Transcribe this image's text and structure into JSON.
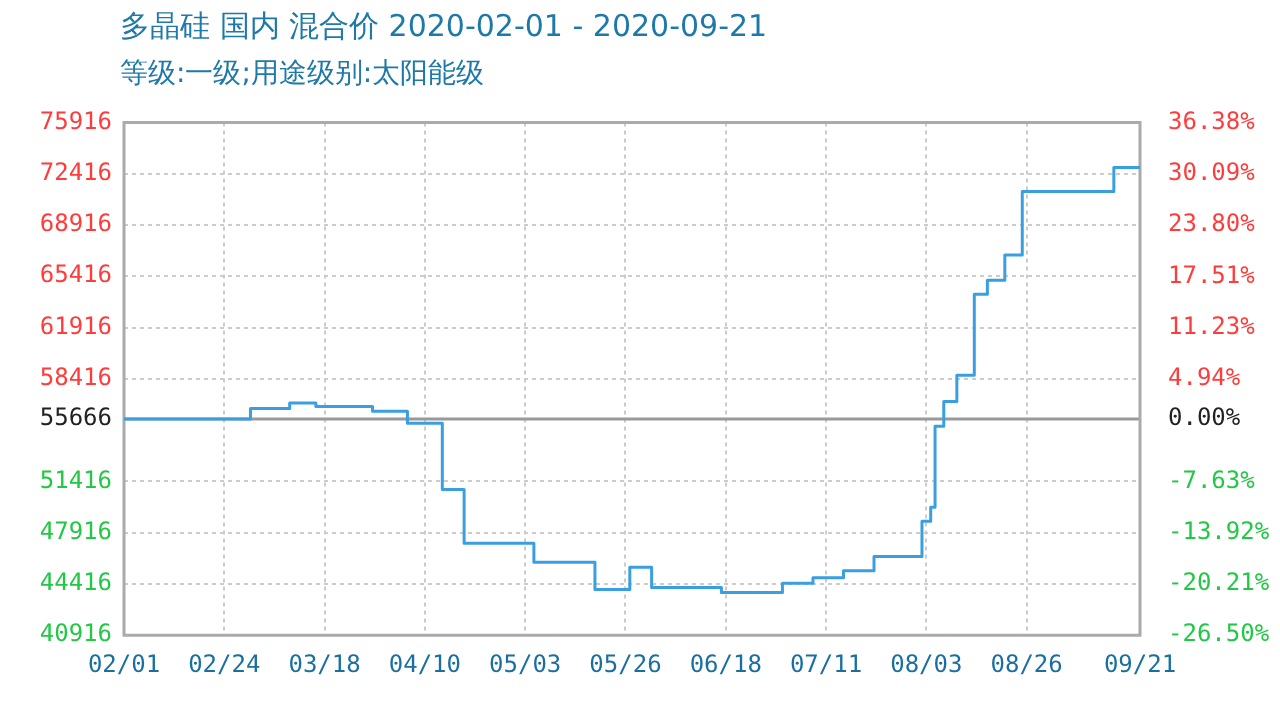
{
  "chart_data": {
    "type": "step",
    "title": "多晶硅 国内 混合价 2020-02-01 - 2020-09-21",
    "subtitle": "等级:一级;用途级别:太阳能级",
    "x": [
      "2020-02-01",
      "2020-03-01",
      "2020-03-10",
      "2020-03-16",
      "2020-03-29",
      "2020-04-06",
      "2020-04-14",
      "2020-04-19",
      "2020-05-05",
      "2020-05-19",
      "2020-05-27",
      "2020-06-01",
      "2020-06-17",
      "2020-07-01",
      "2020-07-08",
      "2020-07-15",
      "2020-07-22",
      "2020-08-02",
      "2020-08-04",
      "2020-08-05",
      "2020-08-07",
      "2020-08-10",
      "2020-08-14",
      "2020-08-17",
      "2020-08-21",
      "2020-08-25",
      "2020-09-15",
      "2020-09-21"
    ],
    "series": [
      {
        "color": "#3a9fe0",
        "values": [
          55666,
          56390,
          56770,
          56530,
          56200,
          55380,
          50860,
          47200,
          45900,
          44030,
          45560,
          44170,
          43830,
          44460,
          44840,
          45320,
          46290,
          48690,
          49650,
          55180,
          56870,
          58650,
          64180,
          65140,
          66870,
          71200,
          72840,
          72840
        ]
      }
    ],
    "xlim": [
      "2020-02-01",
      "2020-09-21"
    ],
    "xticks": [
      {
        "value": "2020-02-01",
        "label": "02/01"
      },
      {
        "value": "2020-02-24",
        "label": "02/24"
      },
      {
        "value": "2020-03-18",
        "label": "03/18"
      },
      {
        "value": "2020-04-10",
        "label": "04/10"
      },
      {
        "value": "2020-05-03",
        "label": "05/03"
      },
      {
        "value": "2020-05-26",
        "label": "05/26"
      },
      {
        "value": "2020-06-18",
        "label": "06/18"
      },
      {
        "value": "2020-07-11",
        "label": "07/11"
      },
      {
        "value": "2020-08-03",
        "label": "08/03"
      },
      {
        "value": "2020-08-26",
        "label": "08/26"
      },
      {
        "value": "2020-09-21",
        "label": "09/21"
      }
    ],
    "ylim": [
      40916,
      75916
    ],
    "yticks": [
      40916,
      44416,
      47916,
      51416,
      55666,
      58416,
      61916,
      65416,
      68916,
      72416,
      75916
    ],
    "y2lim": [
      -26.5,
      36.38
    ],
    "y2ticks": [
      {
        "value": -26.5,
        "label": "-26.50%"
      },
      {
        "value": -20.21,
        "label": "-20.21%"
      },
      {
        "value": -13.92,
        "label": "-13.92%"
      },
      {
        "value": -7.63,
        "label": "-7.63%"
      },
      {
        "value": 0,
        "label": "0.00%"
      },
      {
        "value": 4.94,
        "label": "4.94%"
      },
      {
        "value": 11.23,
        "label": "11.23%"
      },
      {
        "value": 17.51,
        "label": "17.51%"
      },
      {
        "value": 23.8,
        "label": "23.80%"
      },
      {
        "value": 30.09,
        "label": "30.09%"
      },
      {
        "value": 36.38,
        "label": "36.38%"
      }
    ],
    "ref_lines": [
      {
        "axis": "y",
        "value": 55666,
        "color": "#999999"
      }
    ],
    "grid": true,
    "legend": false,
    "marker": "none",
    "line_style": "solid"
  }
}
